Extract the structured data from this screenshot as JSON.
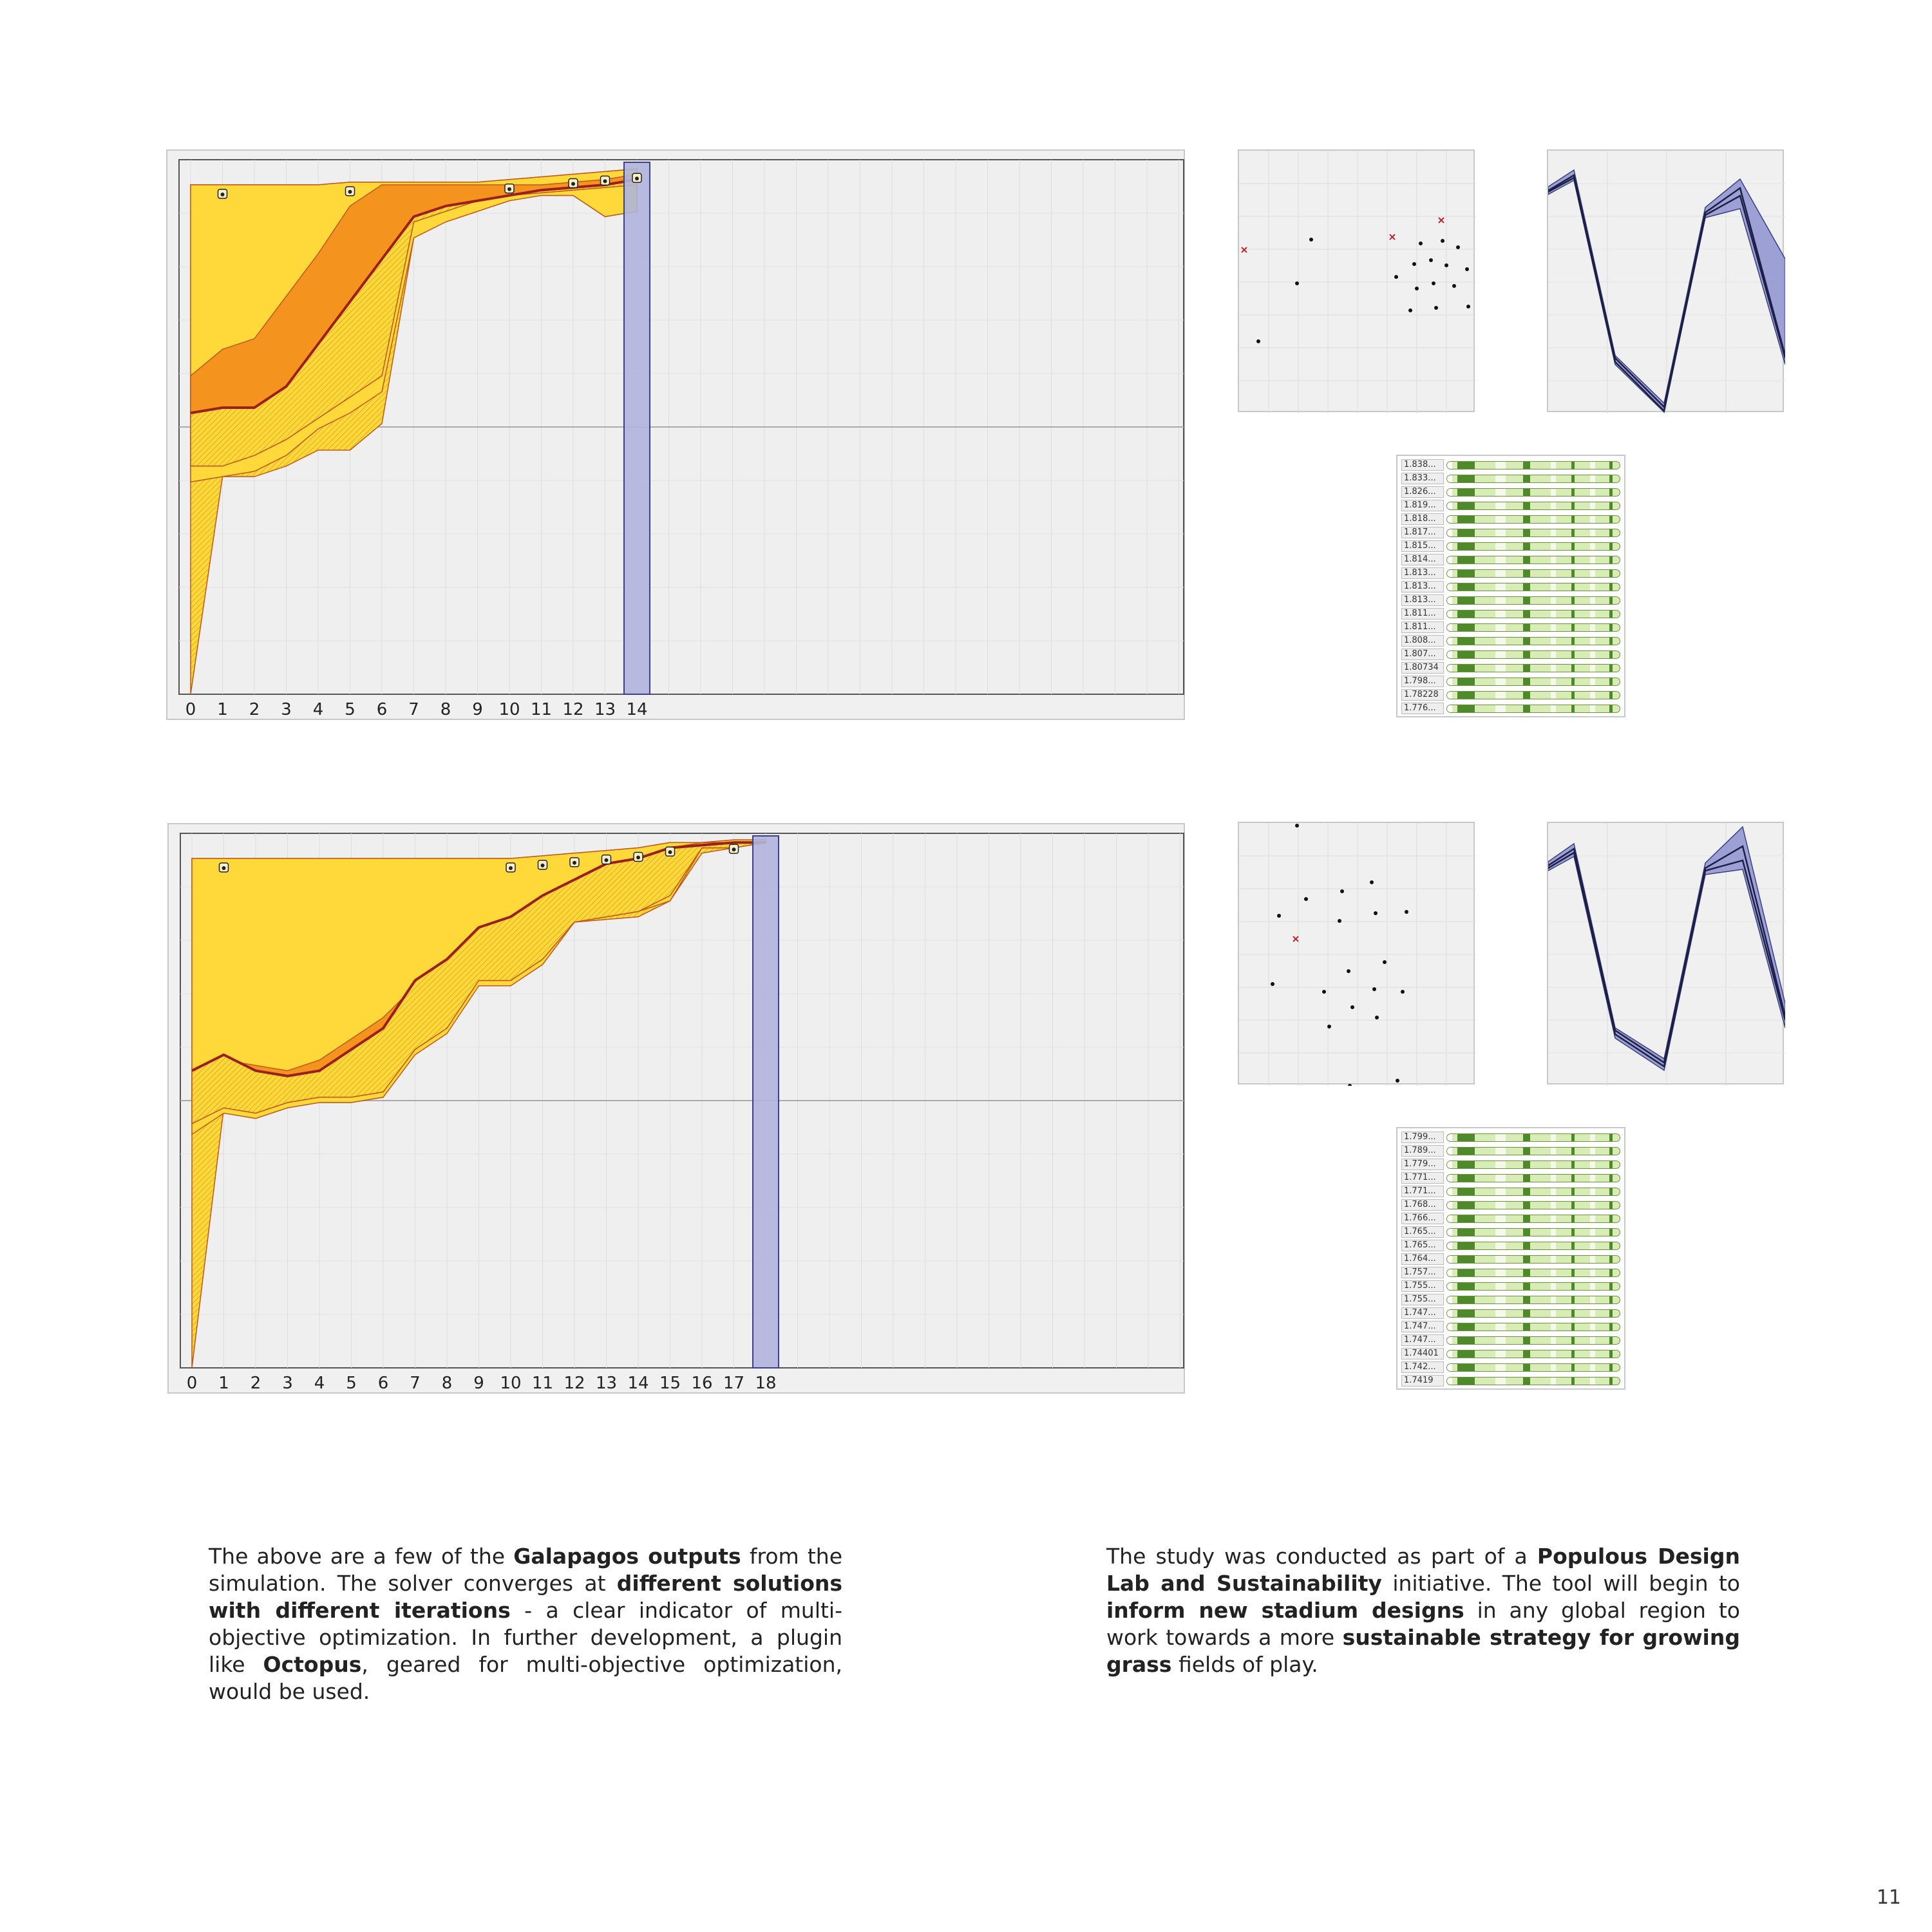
{
  "graphs": [
    {
      "id": "run-1",
      "x_ticks": [
        "0",
        "1",
        "2",
        "3",
        "4",
        "5",
        "6",
        "7",
        "8",
        "9",
        "10",
        "11",
        "12",
        "13",
        "14"
      ],
      "current_generation": 14,
      "elite_markers": [
        1,
        5,
        10,
        12,
        13,
        14
      ],
      "envelope": {
        "max": [
          0.96,
          0.96,
          0.96,
          0.96,
          0.96,
          0.965,
          0.965,
          0.965,
          0.965,
          0.965,
          0.97,
          0.975,
          0.98,
          0.985,
          0.99
        ],
        "q3": [
          0.6,
          0.65,
          0.67,
          0.75,
          0.83,
          0.92,
          0.96,
          0.96,
          0.96,
          0.96,
          0.96,
          0.96,
          0.965,
          0.97,
          0.98
        ],
        "mean": [
          0.53,
          0.54,
          0.54,
          0.58,
          0.66,
          0.74,
          0.82,
          0.9,
          0.92,
          0.93,
          0.94,
          0.95,
          0.955,
          0.96,
          0.97
        ],
        "q1": [
          0.43,
          0.43,
          0.45,
          0.48,
          0.52,
          0.56,
          0.6,
          0.89,
          0.91,
          0.93,
          0.94,
          0.945,
          0.95,
          0.955,
          0.96
        ],
        "low": [
          0.4,
          0.41,
          0.42,
          0.45,
          0.5,
          0.53,
          0.57,
          0.86,
          0.89,
          0.91,
          0.93,
          0.94,
          0.94,
          0.9,
          0.91
        ],
        "min": [
          0.0,
          0.41,
          0.41,
          0.43,
          0.46,
          0.46,
          0.51,
          0.86,
          0.89,
          0.91,
          0.93,
          0.94,
          0.94,
          0.9,
          0.91
        ]
      },
      "genomes": [
        "1.838...",
        "1.833...",
        "1.826...",
        "1.819...",
        "1.818...",
        "1.817...",
        "1.815...",
        "1.814...",
        "1.813...",
        "1.813...",
        "1.813...",
        "1.811...",
        "1.811...",
        "1.808...",
        "1.807...",
        "1.80734",
        "1.798...",
        "1.78228",
        "1.776..."
      ]
    },
    {
      "id": "run-2",
      "x_ticks": [
        "0",
        "1",
        "2",
        "3",
        "4",
        "5",
        "6",
        "7",
        "8",
        "9",
        "10",
        "11",
        "12",
        "13",
        "14",
        "15",
        "16",
        "17",
        "18"
      ],
      "current_generation": 18,
      "elite_markers": [
        1,
        10,
        11,
        12,
        13,
        14,
        15,
        17
      ],
      "envelope": {
        "max": [
          0.96,
          0.96,
          0.96,
          0.96,
          0.96,
          0.96,
          0.96,
          0.96,
          0.96,
          0.96,
          0.96,
          0.965,
          0.97,
          0.975,
          0.98,
          0.99,
          0.99,
          0.995,
          0.995
        ],
        "q3": [
          0.55,
          0.58,
          0.57,
          0.56,
          0.58,
          0.62,
          0.66,
          0.72,
          0.76,
          0.81,
          0.84,
          0.87,
          0.9,
          0.93,
          0.94,
          0.98,
          0.99,
          0.99,
          0.99
        ],
        "mean": [
          0.56,
          0.59,
          0.56,
          0.55,
          0.56,
          0.6,
          0.64,
          0.73,
          0.77,
          0.83,
          0.85,
          0.89,
          0.92,
          0.95,
          0.96,
          0.98,
          0.985,
          0.99,
          0.99
        ],
        "q1": [
          0.46,
          0.49,
          0.48,
          0.5,
          0.51,
          0.51,
          0.52,
          0.6,
          0.64,
          0.73,
          0.73,
          0.77,
          0.84,
          0.85,
          0.86,
          0.89,
          0.98,
          0.98,
          0.99
        ],
        "low": [
          0.44,
          0.48,
          0.47,
          0.49,
          0.5,
          0.5,
          0.51,
          0.59,
          0.63,
          0.72,
          0.72,
          0.76,
          0.84,
          0.85,
          0.86,
          0.88,
          0.98,
          0.98,
          0.99
        ],
        "min": [
          0.0,
          0.49,
          0.47,
          0.5,
          0.5,
          0.5,
          0.51,
          0.6,
          0.64,
          0.73,
          0.73,
          0.77,
          0.84,
          0.845,
          0.85,
          0.88,
          0.97,
          0.98,
          0.99
        ]
      },
      "genomes": [
        "1.799...",
        "1.789...",
        "1.779...",
        "1.771...",
        "1.771...",
        "1.768...",
        "1.766...",
        "1.765...",
        "1.765...",
        "1.764...",
        "1.757...",
        "1.755...",
        "1.755...",
        "1.747...",
        "1.747...",
        "1.747...",
        "1.74401",
        "1.742...",
        "1.7419"
      ]
    }
  ],
  "colors": {
    "panel_bg": "#f0f0f0",
    "envelope_outer": "#ffd93a",
    "envelope_inner": "#f5931f",
    "mean_line": "#9c1f1f",
    "current_bar": "#b0b4dc",
    "genome_fill": "#d8ecb6",
    "genome_accent": "#4f8a2a"
  },
  "caption_left": [
    {
      "t": "The above are a few of the ",
      "b": false
    },
    {
      "t": "Galapagos outputs",
      "b": true
    },
    {
      "t": " from the simulation. The solver converges at ",
      "b": false
    },
    {
      "t": "different solutions with different iterations",
      "b": true
    },
    {
      "t": " - a clear indicator of multi-objective optimization. In further development, a plugin like ",
      "b": false
    },
    {
      "t": "Octopus",
      "b": true
    },
    {
      "t": ", geared for multi-objective optimization, would be used.",
      "b": false
    }
  ],
  "caption_right": [
    {
      "t": "The study was conducted as part of a ",
      "b": false
    },
    {
      "t": "Populous Design Lab and Sustainability",
      "b": true
    },
    {
      "t": " initiative. The tool will begin to ",
      "b": false
    },
    {
      "t": "inform new stadium designs",
      "b": true
    },
    {
      "t": " in any global region to work towards a more ",
      "b": false
    },
    {
      "t": "sustainable strategy for growing grass",
      "b": true
    },
    {
      "t": " fields of play.",
      "b": false
    }
  ],
  "page_number": "11"
}
